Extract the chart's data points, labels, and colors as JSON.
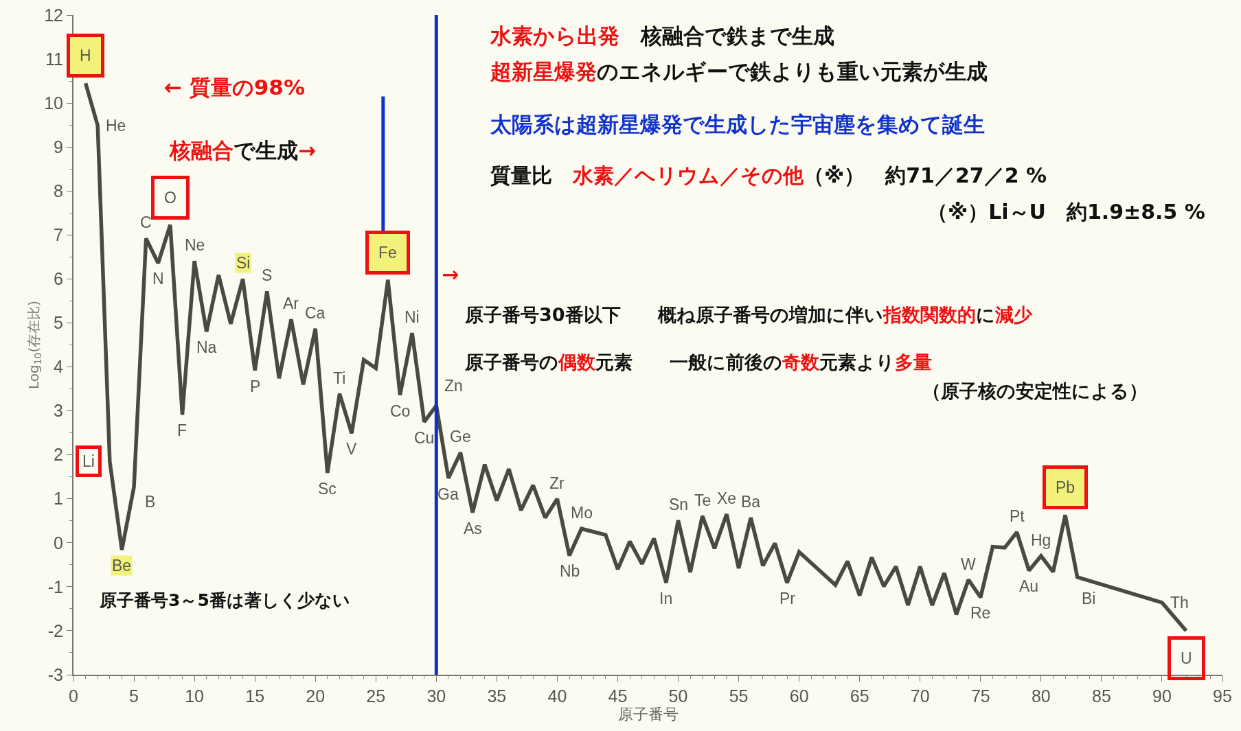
{
  "chart_data": {
    "type": "line",
    "xlabel": "原子番号",
    "ylabel": "Log$_{10}$(存在比)",
    "xlim": [
      0,
      95
    ],
    "xticks": [
      0,
      5,
      10,
      15,
      20,
      25,
      30,
      35,
      40,
      45,
      50,
      55,
      60,
      65,
      70,
      75,
      80,
      85,
      90,
      95
    ],
    "ylim": [
      -3,
      12
    ],
    "yticks": [
      -3,
      -2,
      -1,
      0,
      1,
      2,
      3,
      4,
      5,
      6,
      7,
      8,
      9,
      10,
      11,
      12
    ],
    "grid": false,
    "marker": "none",
    "line_style": "solid",
    "series": [
      {
        "color": "#4a4a44",
        "x": [
          1,
          2,
          3,
          4,
          5,
          6,
          7,
          8,
          9,
          10,
          11,
          12,
          13,
          14,
          15,
          16,
          17,
          18,
          19,
          20,
          21,
          22,
          23,
          24,
          25,
          26,
          27,
          28,
          29,
          30,
          31,
          32,
          33,
          34,
          35,
          36,
          37,
          38,
          39,
          40,
          41,
          42,
          44,
          45,
          46,
          47,
          48,
          49,
          50,
          51,
          52,
          53,
          54,
          55,
          56,
          57,
          58,
          59,
          60,
          62,
          63,
          64,
          65,
          66,
          67,
          68,
          69,
          70,
          71,
          72,
          73,
          74,
          75,
          76,
          77,
          78,
          79,
          80,
          81,
          82,
          83,
          90,
          92
        ],
        "values": [
          10.45,
          9.49,
          1.85,
          -0.16,
          1.27,
          6.92,
          6.36,
          7.23,
          2.91,
          6.41,
          4.8,
          6.09,
          4.98,
          6.0,
          3.92,
          5.72,
          3.74,
          5.08,
          3.6,
          4.87,
          1.59,
          3.39,
          2.49,
          4.16,
          3.97,
          5.98,
          3.36,
          4.77,
          2.75,
          3.12,
          1.47,
          2.05,
          0.69,
          1.78,
          0.96,
          1.68,
          0.74,
          1.31,
          0.57,
          1.0,
          -0.29,
          0.32,
          0.18,
          -0.6,
          0.03,
          -0.48,
          0.1,
          -0.91,
          0.51,
          -0.67,
          0.61,
          -0.13,
          0.65,
          -0.58,
          0.57,
          -0.52,
          -0.01,
          -0.91,
          -0.21,
          -0.71,
          -0.96,
          -0.42,
          -1.2,
          -0.33,
          -0.99,
          -0.54,
          -1.42,
          -0.54,
          -1.42,
          -0.69,
          -1.63,
          -0.84,
          -1.24,
          -0.09,
          -0.11,
          0.24,
          -0.63,
          -0.3,
          -0.66,
          0.63,
          -0.78,
          -1.36,
          -2.0
        ]
      }
    ],
    "ref_lines": [
      {
        "axis": "x",
        "value": 30,
        "color": "#1030c8"
      }
    ],
    "annotations": [
      "← 質量の98%",
      "核融合",
      "で生成",
      "→",
      "水素から出発",
      "　核融合で鉄まで生成",
      "超新星爆発",
      "のエネルギーで鉄よりも重い元素が生成",
      "太陽系は超新星爆発で生成した宇宙塵を集めて誕生",
      "質量比　",
      "水素／ヘリウム／その他",
      "（※）　約71／27／2 %",
      "（※）Li～U　約1.9±8.5 %",
      "→",
      "原子番号30番以下　　概ね原子番号の増加に伴い",
      "指数関数的",
      "に",
      "減少",
      "原子番号の",
      "偶数",
      "元素　　一般に前後の",
      "奇数",
      "元素より",
      "多量",
      "（原子核の安定性による）",
      "原子番号3～5番は著しく少ない",
      {
        "text": "H",
        "x": 1,
        "y": 10.45
      },
      {
        "text": "He",
        "x": 2,
        "y": 9.49
      },
      {
        "text": "Li",
        "x": 3,
        "y": 1.85
      },
      {
        "text": "Be",
        "x": 4,
        "y": -0.16
      },
      {
        "text": "B",
        "x": 5,
        "y": 1.27
      },
      {
        "text": "C",
        "x": 6,
        "y": 6.92
      },
      {
        "text": "N",
        "x": 7,
        "y": 6.36
      },
      {
        "text": "O",
        "x": 8,
        "y": 7.23
      },
      {
        "text": "F",
        "x": 9,
        "y": 2.91
      },
      {
        "text": "Ne",
        "x": 10,
        "y": 6.41
      },
      {
        "text": "Na",
        "x": 11,
        "y": 4.8
      },
      {
        "text": "Si",
        "x": 14,
        "y": 6.0
      },
      {
        "text": "P",
        "x": 15,
        "y": 3.92
      },
      {
        "text": "S",
        "x": 16,
        "y": 5.72
      },
      {
        "text": "Ar",
        "x": 18,
        "y": 5.08
      },
      {
        "text": "Ca",
        "x": 20,
        "y": 4.87
      },
      {
        "text": "Sc",
        "x": 21,
        "y": 1.59
      },
      {
        "text": "Ti",
        "x": 22,
        "y": 3.39
      },
      {
        "text": "V",
        "x": 23,
        "y": 2.49
      },
      {
        "text": "Fe",
        "x": 26,
        "y": 5.98
      },
      {
        "text": "Co",
        "x": 27,
        "y": 3.36
      },
      {
        "text": "Ni",
        "x": 28,
        "y": 4.77
      },
      {
        "text": "Cu",
        "x": 29,
        "y": 2.75
      },
      {
        "text": "Zn",
        "x": 30,
        "y": 3.12
      },
      {
        "text": "Ga",
        "x": 31,
        "y": 1.47
      },
      {
        "text": "Ge",
        "x": 32,
        "y": 2.05
      },
      {
        "text": "As",
        "x": 33,
        "y": 0.69
      },
      {
        "text": "Zr",
        "x": 40,
        "y": 1.0
      },
      {
        "text": "Nb",
        "x": 41,
        "y": -0.29
      },
      {
        "text": "Mo",
        "x": 42,
        "y": 0.32
      },
      {
        "text": "Sn",
        "x": 50,
        "y": 0.51
      },
      {
        "text": "In",
        "x": 49,
        "y": -0.91
      },
      {
        "text": "Te",
        "x": 52,
        "y": 0.61
      },
      {
        "text": "Xe",
        "x": 54,
        "y": 0.65
      },
      {
        "text": "Ba",
        "x": 56,
        "y": 0.57
      },
      {
        "text": "Pr",
        "x": 59,
        "y": -0.91
      },
      {
        "text": "W",
        "x": 74,
        "y": -0.84
      },
      {
        "text": "Re",
        "x": 75,
        "y": -1.24
      },
      {
        "text": "Pt",
        "x": 78,
        "y": 0.24
      },
      {
        "text": "Au",
        "x": 79,
        "y": -0.63
      },
      {
        "text": "Hg",
        "x": 80,
        "y": -0.3
      },
      {
        "text": "Pb",
        "x": 82,
        "y": 0.63
      },
      {
        "text": "Bi",
        "x": 83,
        "y": -0.78
      },
      {
        "text": "Th",
        "x": 90,
        "y": -1.36
      },
      {
        "text": "U",
        "x": 92,
        "y": -2.0
      }
    ]
  }
}
